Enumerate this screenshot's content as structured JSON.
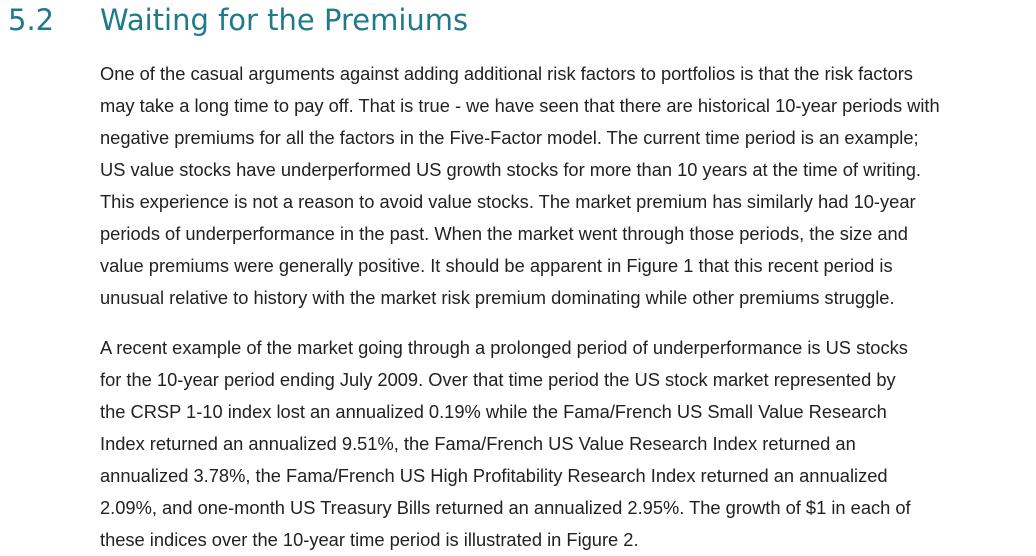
{
  "section": {
    "number": "5.2",
    "title": "Waiting for the Premiums"
  },
  "paragraphs": [
    {
      "lines": [
        "One of the casual arguments against adding additional risk factors to portfolios is that the risk factors",
        "may take a long time to pay off. That is true - we have seen that there are historical 10-year periods with",
        "negative premiums for all the factors in the Five-Factor model. The current time period is an example;",
        "US value stocks have underperformed US growth stocks for more than 10 years at the time of writing.",
        "This experience is not a reason to avoid value stocks. The market premium has similarly had 10-year",
        "periods of underperformance in the past. When the market went through those periods, the size and",
        "value premiums were generally positive. It should be apparent in Figure 1 that this recent period is",
        "unusual relative to history with the market risk premium dominating while other premiums struggle."
      ]
    },
    {
      "lines": [
        "A recent example of the market going through a prolonged period of underperformance is US stocks",
        "for the 10-year period ending July 2009. Over that time period the US stock market represented by",
        "the CRSP 1-10 index lost an annualized 0.19% while the Fama/French US Small Value Research",
        "Index returned an annualized 9.51%, the Fama/French US Value Research Index returned an",
        "annualized 3.78%, the Fama/French US High Profitability Research Index returned an annualized",
        "2.09%, and one-month US Treasury Bills returned an annualized 2.95%. The growth of $1 in each of",
        "these indices over the 10-year time period is illustrated in Figure 2."
      ]
    }
  ],
  "colors": {
    "heading": "#1f7a8c",
    "body_text": "#222222",
    "background": "#ffffff"
  }
}
